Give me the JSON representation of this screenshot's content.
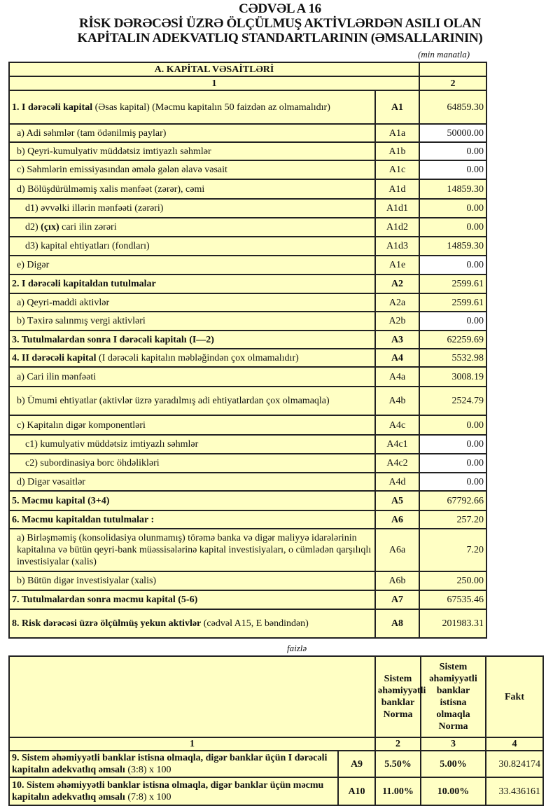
{
  "header": {
    "table_no": "CƏDVƏL A 16",
    "title_line1": "RİSK DƏRƏCƏSİ ÜZRƏ ÖLÇÜLMUŞ AKTİVLƏRDƏN ASILI OLAN",
    "title_line2": "KAPİTALIN ADEKVATLIQ STANDARTLARININ (ƏMSALLARININ)",
    "unit": "(min manatla)"
  },
  "table1": {
    "section": "A. KAPİTAL VƏSAİTLƏRİ",
    "col1": "1",
    "col2": "2",
    "rows": [
      {
        "bold": "1. I dərəcəli kapital",
        "text": " (Əsas kapital) (Məcmu kapitalın 50 faizdən  az olmamalıdır)",
        "code": "A1",
        "value": "64859.30"
      },
      {
        "bold": "",
        "text": "a) Adi səhmlər (tam ödənilmiş paylar)",
        "code": "A1a",
        "value": "50000.00"
      },
      {
        "bold": "",
        "text": "b) Qeyri-kumulyativ müddətsiz imtiyazlı səhmlər",
        "code": "A1b",
        "value": "0.00"
      },
      {
        "bold": "",
        "text": "c) Səhmlərin emissiyasından əmələ gələn  əlavə vəsait",
        "code": "A1c",
        "value": "0.00"
      },
      {
        "bold": "",
        "text": "d)   Bölüşdürülməmiş xalis mənfəət (zərər), cəmi",
        "code": "A1d",
        "value": "14859.30"
      },
      {
        "bold": "",
        "text": "d1) əvvəlki illərin mənfəəti (zərəri)",
        "code": "A1d1",
        "value": "0.00"
      },
      {
        "bold": "",
        "pre": "d2) ",
        "mid": "(çıx)",
        "text": " cari ilin zərəri",
        "code": "A1d2",
        "value": "0.00"
      },
      {
        "bold": "",
        "text": "d3) kapital ehtiyatları (fondları)",
        "code": "A1d3",
        "value": "14859.30"
      },
      {
        "bold": "",
        "text": "e) Digər",
        "code": "A1e",
        "value": "0.00"
      },
      {
        "bold": "2. I dərəcəli kapitaldan  tutulmalar",
        "text": "",
        "code": "A2",
        "value": "2599.61"
      },
      {
        "bold": "",
        "text": "a) Qeyri-maddi aktivlər",
        "code": "A2a",
        "value": "2599.61"
      },
      {
        "bold": "",
        "text": "b) Təxirə salınmış vergi aktivləri",
        "code": "A2b",
        "value": "0.00"
      },
      {
        "bold": "3. Tutulmalardan  sonra I dərəcəli kapitalı (I—2)",
        "text": "",
        "code": "A3",
        "value": "62259.69"
      },
      {
        "bold": "4. II dərəcəli  kapital",
        "text": " (I dərəcəli  kapitalın  məbləğindən çox olmamalıdır)",
        "code": "A4",
        "value": "5532.98"
      },
      {
        "bold": "",
        "text": "a) Cari ilin mənfəəti",
        "code": "A4a",
        "value": "3008.19"
      },
      {
        "bold": "",
        "text": "b) Ümumi ehtiyatlar (aktivlər üzrə yaradılmış adi ehtiyatlardan çox olmamaqla)",
        "code": "A4b",
        "value": "2524.79"
      },
      {
        "bold": "",
        "text": "c)  Kapitalın digər komponentləri",
        "code": "A4c",
        "value": "0.00"
      },
      {
        "bold": "",
        "text": "c1) kumulyativ müddətsiz imtiyazlı səhmlər",
        "code": "A4c1",
        "value": "0.00"
      },
      {
        "bold": "",
        "text": "c2) subordinasiya borc öhdəlikləri",
        "code": "A4c2",
        "value": "0.00"
      },
      {
        "bold": "",
        "text": "d)  Digər vəsaitlər",
        "code": "A4d",
        "value": "0.00"
      },
      {
        "bold": "5. Məcmu kapital (3+4)",
        "text": "",
        "code": "A5",
        "value": "67792.66"
      },
      {
        "bold": "6. Məcmu kapitaldan tutulmalar :",
        "text": "",
        "code": "A6",
        "value": "257.20"
      },
      {
        "bold": "",
        "text": "a)   Birləşməmiş (konsolidasiya olunmamış) törəmə banka və digər maliyyə idarələrinin kapitalına və bütün qeyri-bank müəssisələrinə kapital investisiyaları, o cümlədən qarşılıqlı investisiyalar (xalis)",
        "code": "A6a",
        "value": "7.20"
      },
      {
        "bold": "",
        "text": "b)    Bütün digər investisiyalar (xalis)",
        "code": "A6b",
        "value": "250.00"
      },
      {
        "bold": "7. Tutulmalardan  sonra məcmu kapital (5-6)",
        "text": "",
        "code": "A7",
        "value": "67535.46"
      },
      {
        "bold": "8. Risk dərəcəsi üzrə ölçülmüş  yekun aktivlər",
        "text": "  (cədvəl A15, E bəndindən)",
        "code": "A8",
        "value": "201983.31"
      }
    ]
  },
  "table2": {
    "unit": "faizlə",
    "h2": "Sistem əhəmiyyətli banklar Norma",
    "h3": "Sistem əhəmiyyətli banklar istisna olmaqla Norma",
    "h4": "Fakt",
    "n1": "1",
    "n2": "2",
    "n3": "3",
    "n4": "4",
    "rows": [
      {
        "bold": "9. Sistem əhəmiyyətli banklar istisna olmaqla, digər banklar üçün I dərəcəli  kapitalın  adekvatlıq əmsalı",
        "text": " (3:8) x 100",
        "code": "A9",
        "norm_sys": "5.50%",
        "norm_other": "5.00%",
        "fakt": "30.824174"
      },
      {
        "bold": "10. Sistem əhəmiyyətli banklar istisna olmaqla, digər banklar üçün məcmu kapitalın  adekvatlıq  əmsalı",
        "text": " (7:8) x 100",
        "code": "A10",
        "norm_sys": "11.00%",
        "norm_other": "10.00%",
        "fakt": "33.436161"
      }
    ]
  },
  "colors": {
    "cell": "#ffffc4",
    "white_cell": "#ffffff",
    "border": "#222222"
  }
}
